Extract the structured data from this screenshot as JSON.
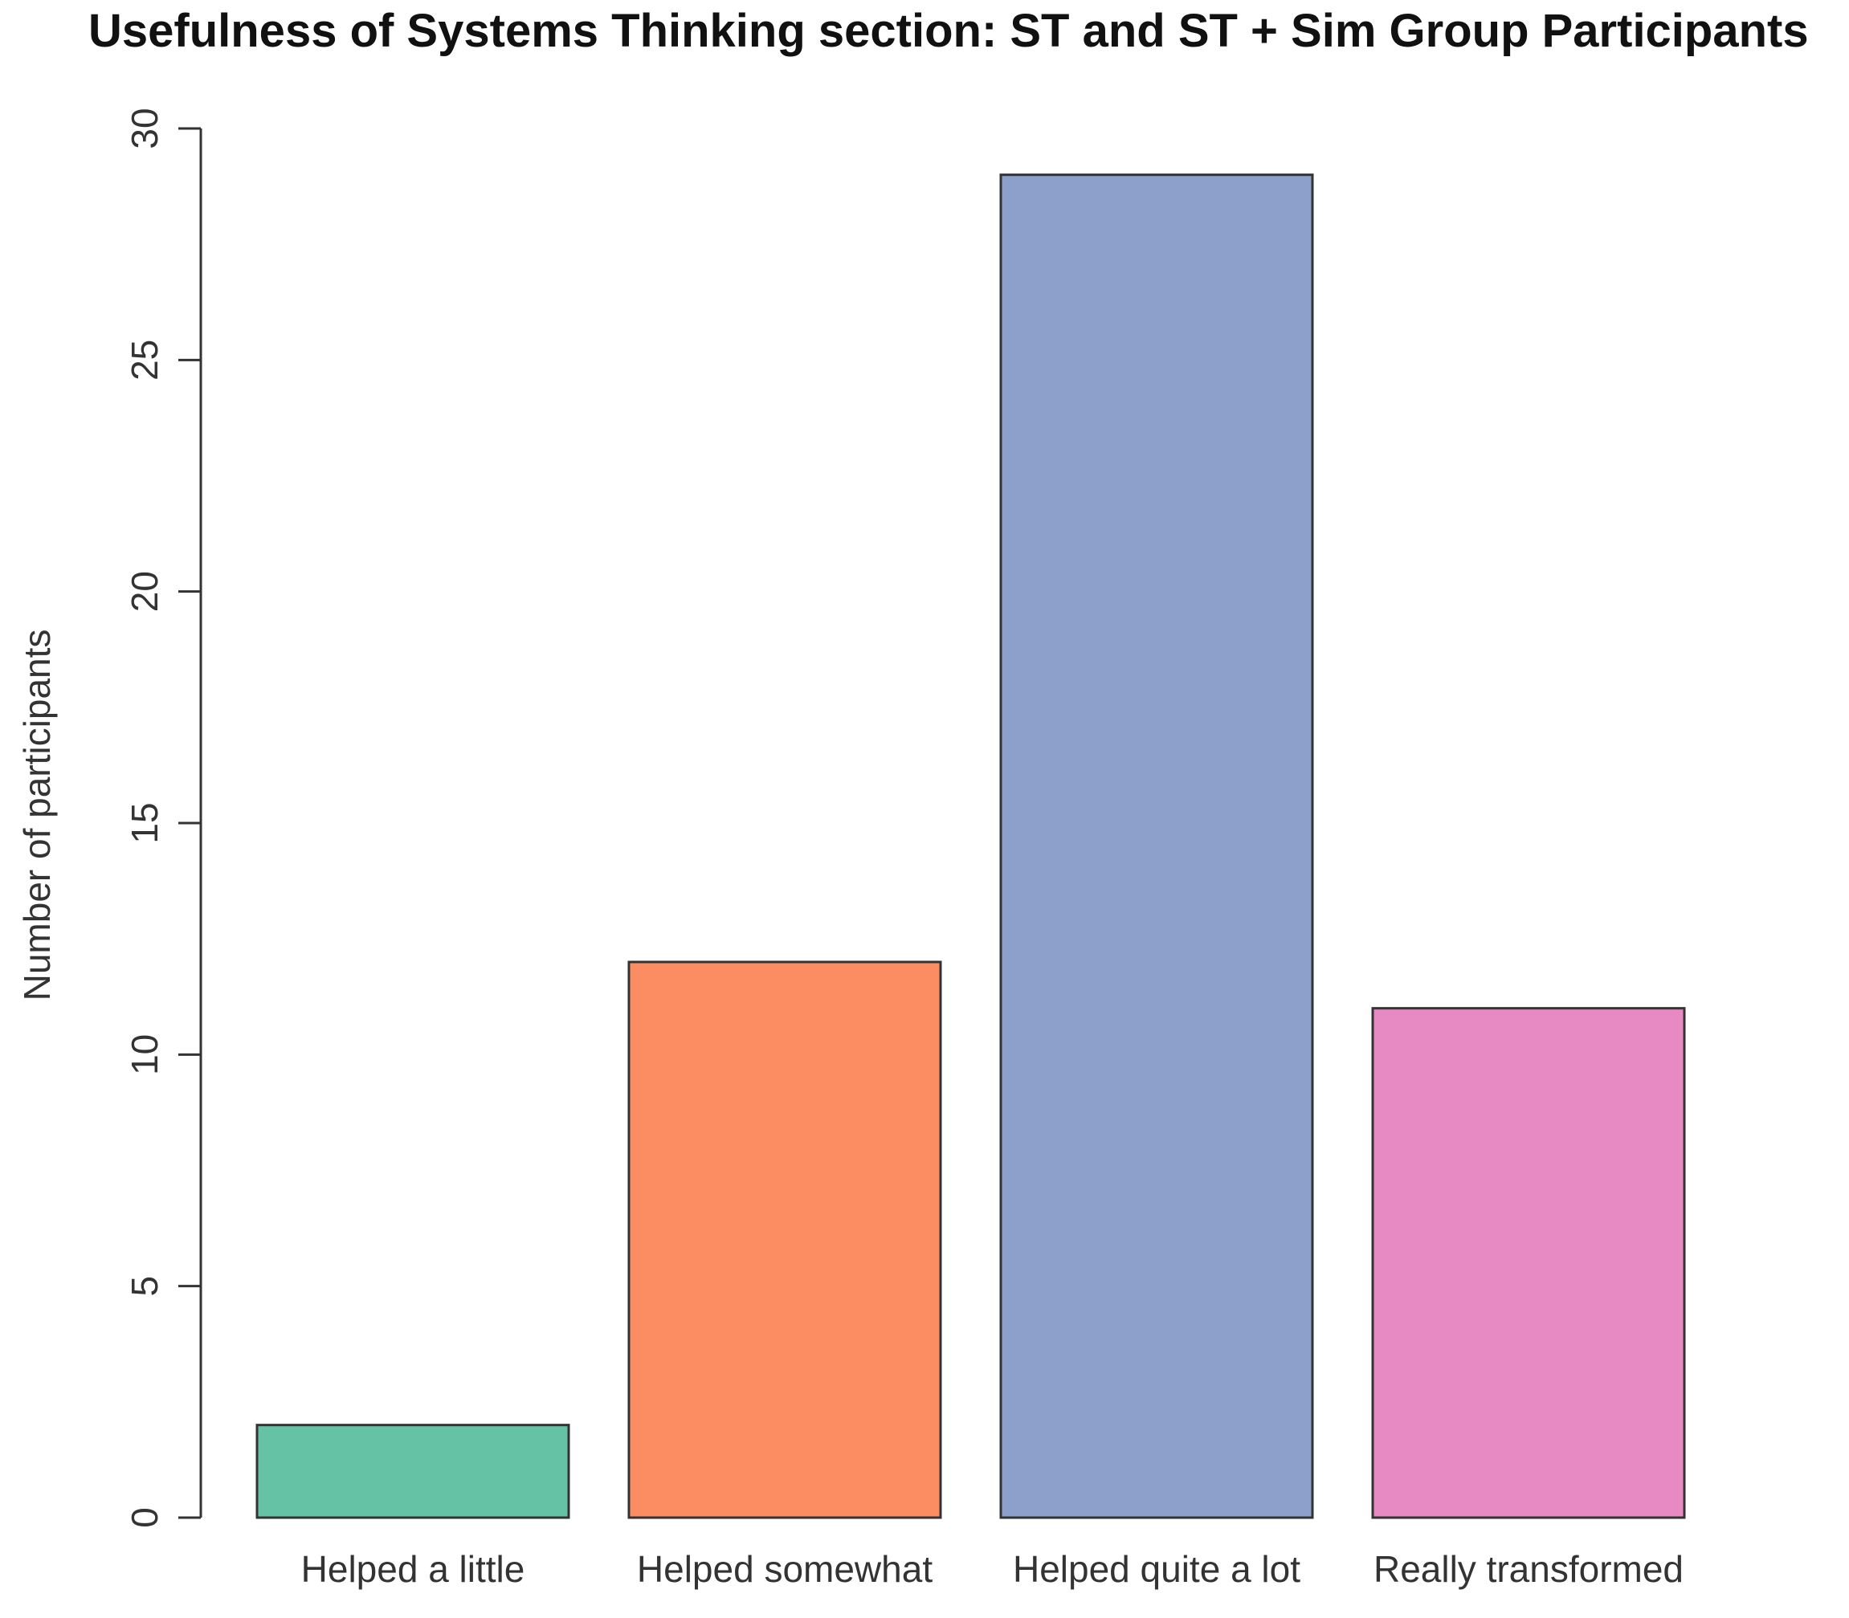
{
  "chart_data": {
    "type": "bar",
    "title": "Usefulness of Systems Thinking section: ST and ST + Sim Group Participants",
    "xlabel": "",
    "ylabel": "Number of participants",
    "categories": [
      "Helped a little",
      "Helped somewhat",
      "Helped quite a lot",
      "Really transformed"
    ],
    "values": [
      2,
      12,
      29,
      11
    ],
    "colors": [
      "#66c2a5",
      "#fc8d62",
      "#8da0cb",
      "#e78ac3"
    ],
    "ylim": [
      0,
      30
    ],
    "yticks": [
      0,
      5,
      10,
      15,
      20,
      25,
      30
    ],
    "ytick_labels": [
      "0",
      "5",
      "10",
      "15",
      "20",
      "25",
      "30"
    ],
    "grid": false,
    "legend": "none"
  }
}
